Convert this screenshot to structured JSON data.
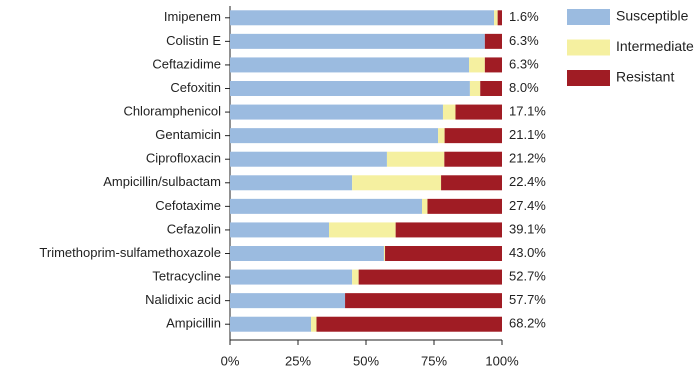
{
  "chart_data": {
    "type": "stacked_barh",
    "categories": [
      "Imipenem",
      "Colistin E",
      "Ceftazidime",
      "Cefoxitin",
      "Chloramphenicol",
      "Gentamicin",
      "Ciprofloxacin",
      "Ampicillin/sulbactam",
      "Cefotaxime",
      "Cefazolin",
      "Trimethoprim-sulfamethoxazole",
      "Tetracycline",
      "Nalidixic acid",
      "Ampicillin"
    ],
    "series": [
      {
        "name": "Susceptible",
        "color": "#9bbbe0",
        "values": [
          97.1,
          93.7,
          87.9,
          88.2,
          78.3,
          76.5,
          57.7,
          44.9,
          70.6,
          36.4,
          56.6,
          44.9,
          42.3,
          29.8
        ]
      },
      {
        "name": "Intermediate",
        "color": "#f5f0a0",
        "values": [
          1.3,
          0,
          5.8,
          3.8,
          4.6,
          2.4,
          21.1,
          32.7,
          2.0,
          24.5,
          0.4,
          2.4,
          0,
          2.0
        ]
      },
      {
        "name": "Resistant",
        "color": "#a01c24",
        "values": [
          1.6,
          6.3,
          6.3,
          8.0,
          17.1,
          21.1,
          21.2,
          22.4,
          27.4,
          39.1,
          43.0,
          52.7,
          57.7,
          68.2
        ],
        "value_labels": [
          "1.6%",
          "6.3%",
          "6.3%",
          "8.0%",
          "17.1%",
          "21.1%",
          "21.2%",
          "22.4%",
          "27.4%",
          "39.1%",
          "43.0%",
          "52.7%",
          "57.7%",
          "68.2%"
        ]
      }
    ],
    "xlim": [
      0,
      100
    ],
    "xticks": [
      {
        "value": 0,
        "label": "0%"
      },
      {
        "value": 25,
        "label": "25%"
      },
      {
        "value": 50,
        "label": "50%"
      },
      {
        "value": 75,
        "label": "75%"
      },
      {
        "value": 100,
        "label": "100%"
      }
    ],
    "legend": "upper-right"
  }
}
